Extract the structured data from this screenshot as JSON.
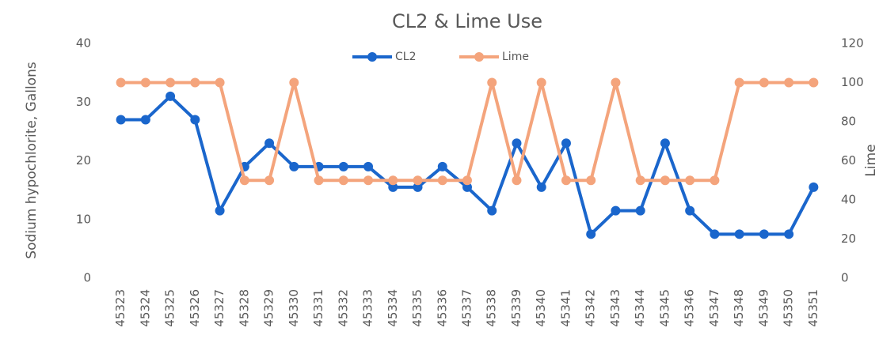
{
  "chart_data": {
    "type": "line",
    "title": "CL2 & Lime Use",
    "ylabel": "Sodium hypochlorite, Gallons",
    "y2label": "Lime",
    "categories": [
      "45323",
      "45324",
      "45325",
      "45326",
      "45327",
      "45328",
      "45329",
      "45330",
      "45331",
      "45332",
      "45333",
      "45334",
      "45335",
      "45336",
      "45337",
      "45338",
      "45339",
      "45340",
      "45341",
      "45342",
      "45343",
      "45344",
      "45345",
      "45346",
      "45347",
      "45348",
      "45349",
      "45350",
      "45351"
    ],
    "series": [
      {
        "name": "CL2",
        "color": "#1a66cc",
        "values": [
          27,
          27,
          31,
          27,
          11.5,
          19,
          23,
          19,
          19,
          19,
          19,
          15.5,
          15.5,
          19,
          15.5,
          11.5,
          23,
          15.5,
          23,
          7.5,
          11.5,
          11.5,
          23,
          11.5,
          7.5,
          7.5,
          7.5,
          7.5,
          15.5
        ]
      },
      {
        "name": "Lime",
        "color": "#f4a47c",
        "axis": "y2",
        "values": [
          100,
          100,
          100,
          100,
          100,
          50,
          50,
          100,
          50,
          50,
          50,
          50,
          50,
          50,
          50,
          100,
          50,
          100,
          50,
          50,
          100,
          50,
          50,
          50,
          50,
          100,
          100,
          100,
          100
        ]
      }
    ],
    "ylim": [
      0,
      40
    ],
    "yticks": [
      0,
      10,
      20,
      30,
      40
    ],
    "y2lim": [
      0,
      120
    ],
    "y2ticks": [
      0,
      20,
      40,
      60,
      80,
      100,
      120
    ],
    "grid": false,
    "legend": "top"
  }
}
